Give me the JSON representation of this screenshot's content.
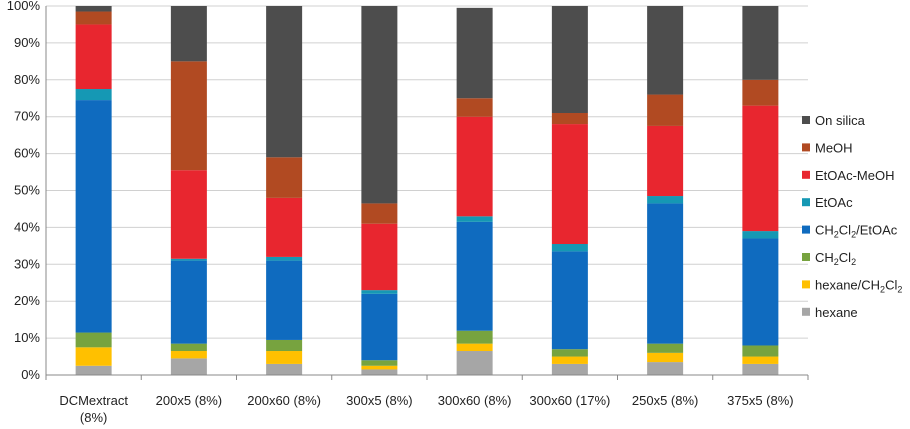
{
  "chart_data": {
    "type": "bar",
    "stacked": true,
    "percent": true,
    "ylim": [
      0,
      100
    ],
    "y_ticks": [
      "0%",
      "10%",
      "20%",
      "30%",
      "40%",
      "50%",
      "60%",
      "70%",
      "80%",
      "90%",
      "100%"
    ],
    "categories": [
      [
        "DCMextract",
        "(8%)"
      ],
      [
        "200x5 (8%)"
      ],
      [
        "200x60 (8%)"
      ],
      [
        "300x5 (8%)"
      ],
      [
        "300x60 (8%)"
      ],
      [
        "300x60 (17%)"
      ],
      [
        "250x5 (8%)"
      ],
      [
        "375x5 (8%)"
      ]
    ],
    "legend_position": "right",
    "series": [
      {
        "name": "hexane",
        "label_parts": [
          [
            "hexane",
            ""
          ]
        ],
        "color": "#a6a6a6",
        "values": [
          2.5,
          4.5,
          3,
          1.5,
          6.5,
          3,
          3.5,
          3
        ]
      },
      {
        "name": "hexane/CH2Cl2",
        "label_parts": [
          [
            "hexane/CH",
            ""
          ],
          [
            "2",
            "sub"
          ],
          [
            "Cl",
            ""
          ],
          [
            "2",
            "sub"
          ]
        ],
        "color": "#ffc000",
        "values": [
          5,
          2,
          3.5,
          1,
          2,
          2,
          2.5,
          2
        ]
      },
      {
        "name": "CH2Cl2",
        "label_parts": [
          [
            "CH",
            ""
          ],
          [
            "2",
            "sub"
          ],
          [
            "Cl",
            ""
          ],
          [
            "2",
            "sub"
          ]
        ],
        "color": "#77a33f",
        "values": [
          4,
          2,
          3,
          1.5,
          3.5,
          2,
          2.5,
          3
        ]
      },
      {
        "name": "CH2Cl2/EtOAc",
        "label_parts": [
          [
            "CH",
            ""
          ],
          [
            "2",
            "sub"
          ],
          [
            "Cl",
            ""
          ],
          [
            "2",
            "sub"
          ],
          [
            "/EtOAc",
            ""
          ]
        ],
        "color": "#0f6bbf",
        "values": [
          63,
          22.5,
          21.5,
          18,
          29.5,
          26.5,
          38,
          29
        ]
      },
      {
        "name": "EtOAc",
        "label_parts": [
          [
            "EtOAc",
            ""
          ]
        ],
        "color": "#1598b4",
        "values": [
          3,
          0.5,
          1,
          1,
          1.5,
          2,
          2,
          2
        ]
      },
      {
        "name": "EtOAc-MeOH",
        "label_parts": [
          [
            "EtOAc-MeOH",
            ""
          ]
        ],
        "color": "#e8262f",
        "values": [
          17.5,
          24,
          16,
          18,
          27,
          32.5,
          19,
          34
        ]
      },
      {
        "name": "MeOH",
        "label_parts": [
          [
            "MeOH",
            ""
          ]
        ],
        "color": "#b14a22",
        "values": [
          3.5,
          29.5,
          11,
          5.5,
          5,
          3,
          8.5,
          7
        ]
      },
      {
        "name": "On silica",
        "label_parts": [
          [
            "On silica",
            ""
          ]
        ],
        "color": "#4d4d4d",
        "values": [
          1.5,
          15,
          41,
          53.5,
          24.5,
          29,
          24,
          20
        ]
      }
    ]
  }
}
